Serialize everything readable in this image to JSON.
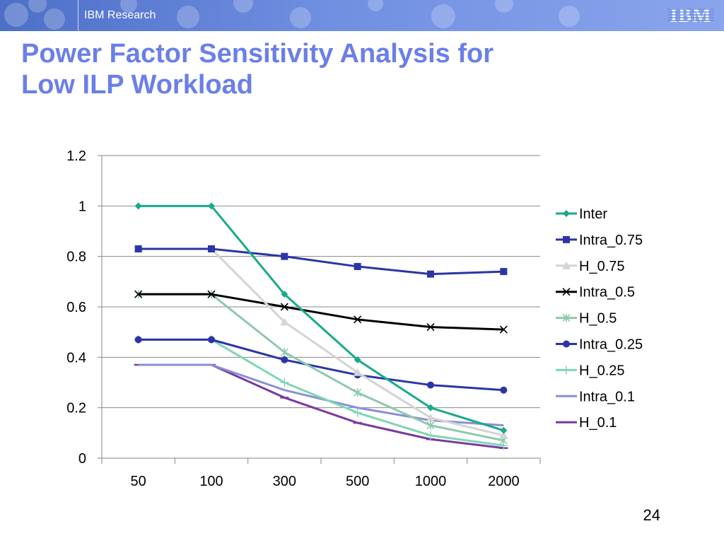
{
  "header": {
    "brand": "IBM Research",
    "logo_text": "IBM"
  },
  "slide": {
    "title_line1": "Power Factor Sensitivity Analysis for",
    "title_line2": "Low ILP Workload",
    "page_number": "24"
  },
  "colors": {
    "header_bar": "#5b7bd6",
    "title": "#6b7fe8"
  },
  "chart_data": {
    "type": "line",
    "title": "",
    "xlabel": "",
    "ylabel": "",
    "categories": [
      "50",
      "100",
      "300",
      "500",
      "1000",
      "2000"
    ],
    "ylim": [
      0,
      1.2
    ],
    "yticks": [
      "0",
      "0.2",
      "0.4",
      "0.6",
      "0.8",
      "1",
      "1.2"
    ],
    "grid": true,
    "legend_position": "right",
    "series": [
      {
        "name": "Inter",
        "color": "#1aaa8a",
        "marker": "diamond",
        "values": [
          1.0,
          1.0,
          0.65,
          0.39,
          0.2,
          0.11
        ]
      },
      {
        "name": "Intra_0.75",
        "color": "#2b35a6",
        "marker": "square",
        "values": [
          0.83,
          0.83,
          0.8,
          0.76,
          0.73,
          0.74
        ]
      },
      {
        "name": "H_0.75",
        "color": "#d4d4d4",
        "marker": "triangle",
        "values": [
          0.83,
          0.83,
          0.54,
          0.34,
          0.16,
          0.09
        ]
      },
      {
        "name": "Intra_0.5",
        "color": "#000000",
        "marker": "x",
        "values": [
          0.65,
          0.65,
          0.6,
          0.55,
          0.52,
          0.51
        ]
      },
      {
        "name": "H_0.5",
        "color": "#8ec9ae",
        "marker": "asterisk",
        "values": [
          0.65,
          0.65,
          0.42,
          0.26,
          0.13,
          0.07
        ]
      },
      {
        "name": "Intra_0.25",
        "color": "#2b35a6",
        "marker": "circle",
        "values": [
          0.47,
          0.47,
          0.39,
          0.33,
          0.29,
          0.27
        ]
      },
      {
        "name": "H_0.25",
        "color": "#7ed6b6",
        "marker": "plus",
        "values": [
          0.47,
          0.47,
          0.3,
          0.18,
          0.09,
          0.05
        ]
      },
      {
        "name": "Intra_0.1",
        "color": "#8a8fd6",
        "marker": "none",
        "values": [
          0.37,
          0.37,
          0.27,
          0.2,
          0.15,
          0.13
        ]
      },
      {
        "name": "H_0.1",
        "color": "#7a3aa0",
        "marker": "dash",
        "values": [
          0.37,
          0.37,
          0.24,
          0.14,
          0.075,
          0.04
        ]
      }
    ]
  }
}
